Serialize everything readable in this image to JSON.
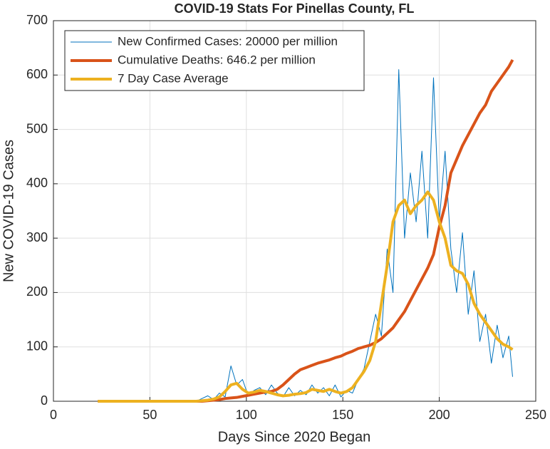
{
  "chart_data": {
    "type": "line",
    "title": "COVID-19 Stats For Pinellas County, FL",
    "xlabel": "Days Since 2020 Began",
    "ylabel": "New COVID-19 Cases",
    "xlim": [
      0,
      250
    ],
    "xticks": [
      0,
      50,
      100,
      150,
      200,
      250
    ],
    "ylim": [
      0,
      700
    ],
    "yticks": [
      0,
      100,
      200,
      300,
      400,
      500,
      600,
      700
    ],
    "grid": true,
    "legend_location": "northwest",
    "x": [
      23,
      26,
      29,
      32,
      35,
      38,
      41,
      44,
      47,
      50,
      53,
      56,
      59,
      62,
      65,
      68,
      71,
      74,
      77,
      80,
      83,
      86,
      89,
      92,
      95,
      98,
      101,
      104,
      107,
      110,
      113,
      116,
      119,
      122,
      125,
      128,
      131,
      134,
      137,
      140,
      143,
      146,
      149,
      152,
      155,
      158,
      161,
      164,
      167,
      170,
      173,
      176,
      179,
      182,
      185,
      188,
      191,
      194,
      197,
      200,
      203,
      206,
      209,
      212,
      215,
      218,
      221,
      224,
      227,
      230,
      233,
      236,
      238
    ],
    "series": [
      {
        "name": "New Confirmed Cases: 20000 per million",
        "color": "#0072bd",
        "line_width": 1,
        "values": [
          0,
          0,
          0,
          0,
          0,
          0,
          0,
          0,
          0,
          0,
          0,
          0,
          0,
          0,
          0,
          0,
          0,
          0,
          5,
          10,
          3,
          15,
          8,
          65,
          30,
          40,
          10,
          20,
          25,
          12,
          30,
          15,
          8,
          25,
          10,
          20,
          12,
          30,
          15,
          25,
          10,
          30,
          8,
          20,
          15,
          40,
          60,
          110,
          160,
          120,
          280,
          200,
          610,
          300,
          420,
          330,
          460,
          300,
          595,
          330,
          460,
          280,
          200,
          310,
          160,
          240,
          110,
          160,
          70,
          140,
          80,
          120,
          45
        ]
      },
      {
        "name": "Cumulative Deaths: 646.2 per million",
        "color": "#d95319",
        "line_width": 4,
        "values": [
          0,
          0,
          0,
          0,
          0,
          0,
          0,
          0,
          0,
          0,
          0,
          0,
          0,
          0,
          0,
          0,
          0,
          0,
          0,
          1,
          2,
          3,
          5,
          6,
          7,
          9,
          11,
          13,
          15,
          17,
          18,
          22,
          30,
          40,
          50,
          58,
          62,
          66,
          70,
          73,
          76,
          80,
          83,
          88,
          92,
          97,
          100,
          103,
          108,
          115,
          125,
          135,
          150,
          165,
          185,
          205,
          225,
          245,
          270,
          320,
          360,
          420,
          445,
          470,
          490,
          510,
          530,
          545,
          570,
          585,
          600,
          615,
          628
        ]
      },
      {
        "name": "7 Day Case Average",
        "color": "#edb120",
        "line_width": 4,
        "values": [
          0,
          0,
          0,
          0,
          0,
          0,
          0,
          0,
          0,
          0,
          0,
          0,
          0,
          0,
          0,
          0,
          0,
          0,
          1,
          2,
          4,
          8,
          18,
          30,
          33,
          22,
          15,
          17,
          20,
          18,
          15,
          12,
          10,
          11,
          13,
          14,
          16,
          22,
          20,
          18,
          22,
          18,
          15,
          18,
          25,
          40,
          55,
          75,
          110,
          180,
          250,
          330,
          360,
          370,
          345,
          360,
          370,
          385,
          370,
          330,
          300,
          250,
          240,
          235,
          215,
          180,
          160,
          145,
          130,
          115,
          105,
          100,
          95
        ]
      }
    ]
  }
}
